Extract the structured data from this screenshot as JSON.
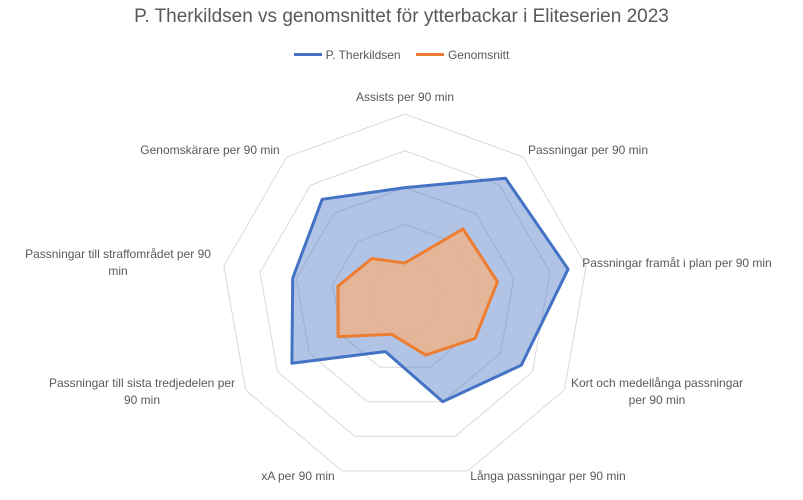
{
  "chart_data": {
    "type": "radar",
    "title": "P. Therkildsen vs genomsnittet för ytterbackar i Eliteserien 2023",
    "categories": [
      "Assists per 90 min",
      "Passningar per 90 min",
      "Passningar framåt i plan per 90 min",
      "Kort och medellånga passningar per 90 min",
      "Långa passningar per 90 min",
      "xA per 90 min",
      "Passningar till sista tredjedelen per 90 min",
      "Passningar till straffområdet per 90 min",
      "Genomskärare per 90 min"
    ],
    "legend_position": "top",
    "grid": true,
    "rlim": [
      0,
      1
    ],
    "series": [
      {
        "name": "P. Therkildsen",
        "color": "#4472C4",
        "fill": "rgba(68,114,196,0.42)",
        "values": [
          0.6,
          0.85,
          0.9,
          0.73,
          0.6,
          0.31,
          0.71,
          0.62,
          0.7
        ]
      },
      {
        "name": "Genomsnitt",
        "color": "#ED7D31",
        "fill": "rgba(244,177,131,0.78)",
        "values": [
          0.19,
          0.49,
          0.51,
          0.44,
          0.33,
          0.21,
          0.42,
          0.37,
          0.28
        ]
      }
    ]
  }
}
